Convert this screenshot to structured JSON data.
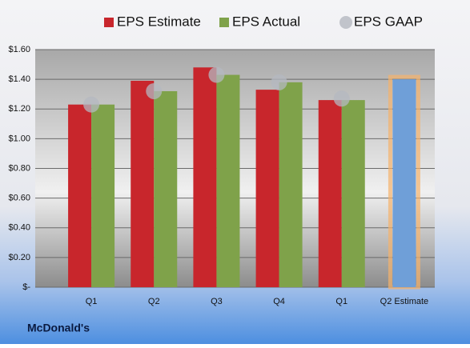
{
  "chart_data": {
    "type": "bar",
    "footer": "McDonald's",
    "categories": [
      "Q1",
      "Q2",
      "Q3",
      "Q4",
      "Q1",
      "Q2 Estimate"
    ],
    "series": [
      {
        "name": "EPS Estimate",
        "color": "#c8262c",
        "values": [
          1.23,
          1.39,
          1.48,
          1.33,
          1.26,
          1.4
        ]
      },
      {
        "name": "EPS Actual",
        "color": "#7fa24a",
        "values": [
          1.23,
          1.32,
          1.43,
          1.38,
          1.26,
          null
        ]
      },
      {
        "name": "EPS GAAP",
        "color": "#b4b8c0",
        "marker": "circle",
        "values": [
          1.23,
          1.32,
          1.43,
          1.38,
          1.27,
          null
        ]
      }
    ],
    "highlight_color": "#6f9fd8",
    "highlight_outline": "#f5b26b",
    "ylim": [
      0,
      1.6
    ],
    "yticks": [
      {
        "value": 0,
        "label": "$-"
      },
      {
        "value": 0.2,
        "label": "$0.20"
      },
      {
        "value": 0.4,
        "label": "$0.40"
      },
      {
        "value": 0.6,
        "label": "$0.60"
      },
      {
        "value": 0.8,
        "label": "$0.80"
      },
      {
        "value": 1.0,
        "label": "$1.00"
      },
      {
        "value": 1.2,
        "label": "$1.20"
      },
      {
        "value": 1.4,
        "label": "$1.40"
      },
      {
        "value": 1.6,
        "label": "$1.60"
      }
    ],
    "grid": true,
    "legend": "top"
  }
}
